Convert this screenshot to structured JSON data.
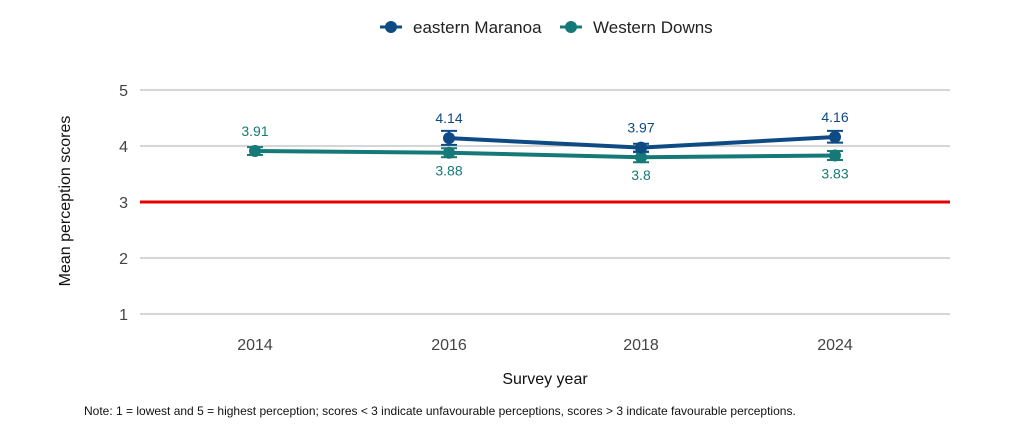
{
  "chart_data": {
    "type": "line",
    "title": "",
    "xlabel": "Survey year",
    "ylabel": "Mean perception scores",
    "categories": [
      "2014",
      "2016",
      "2018",
      "2024"
    ],
    "ylim": [
      1,
      5
    ],
    "yticks": [
      "1",
      "2",
      "3",
      "4",
      "5"
    ],
    "grid": true,
    "legend_position": "top-center",
    "reference_line": {
      "value": 3,
      "color": "#e60000"
    },
    "series": [
      {
        "name": "eastern Maranoa",
        "color": "#0e4a84",
        "values": [
          null,
          4.14,
          3.97,
          4.16
        ],
        "labels": [
          "",
          "4.14",
          "3.97",
          "4.16"
        ],
        "error_low": [
          null,
          4.02,
          3.9,
          4.06
        ],
        "error_high": [
          null,
          4.27,
          4.04,
          4.27
        ],
        "label_position": "above"
      },
      {
        "name": "Western Downs",
        "color": "#157a77",
        "values": [
          3.91,
          3.88,
          3.8,
          3.83
        ],
        "labels": [
          "3.91",
          "3.88",
          "3.8",
          "3.83"
        ],
        "error_low": [
          3.84,
          3.8,
          3.71,
          3.75
        ],
        "error_high": [
          3.98,
          3.96,
          3.89,
          3.91
        ],
        "label_position": "mixed"
      }
    ]
  },
  "note": "Note: 1 = lowest and 5 = highest perception; scores < 3 indicate unfavourable perceptions, scores > 3 indicate favourable perceptions."
}
